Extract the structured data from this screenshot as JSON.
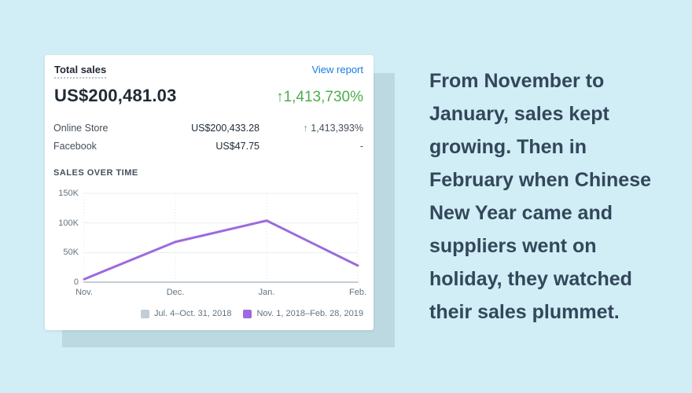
{
  "page": {
    "background_color": "#d1edf5",
    "card_backdrop_color": "#bcd9e2"
  },
  "card": {
    "title": "Total sales",
    "view_report_label": "View report",
    "total_amount": "US$200,481.03",
    "total_change_arrow": "↑",
    "total_change": "1,413,730%",
    "rows": [
      {
        "label": "Online Store",
        "value": "US$200,433.28",
        "change_arrow": "↑",
        "change": "1,413,393%"
      },
      {
        "label": "Facebook",
        "value": "US$47.75",
        "change_arrow": "",
        "change": "-"
      }
    ],
    "section_label": "SALES OVER TIME"
  },
  "chart_data": {
    "type": "line",
    "title": "SALES OVER TIME",
    "categories": [
      "Nov.",
      "Dec.",
      "Jan.",
      "Feb."
    ],
    "series": [
      {
        "name": "Jul. 4–Oct. 31, 2018",
        "color": "#c4cdd5",
        "values": [
          0,
          0,
          0,
          0
        ]
      },
      {
        "name": "Nov. 1, 2018–Feb. 28, 2019",
        "color": "#9c6ade",
        "values": [
          5000,
          68000,
          104000,
          28000
        ]
      }
    ],
    "ylim": [
      0,
      150000
    ],
    "ytick_values": [
      0,
      50000,
      100000,
      150000
    ],
    "ytick_labels": [
      "0",
      "50K",
      "100K",
      "150K"
    ],
    "grid": "horizontal solid, vertical dotted at each month",
    "legend_position": "bottom-right"
  },
  "caption": {
    "text": "From November to January, sales kept growing. Then in February when Chinese New Year came and suppliers went on holiday, they watched their sales plummet.",
    "color": "#33475b"
  },
  "colors": {
    "link_blue": "#1a7ce2",
    "positive_green": "#4dad4c",
    "text_dark": "#212b36",
    "text_gray": "#637381"
  }
}
